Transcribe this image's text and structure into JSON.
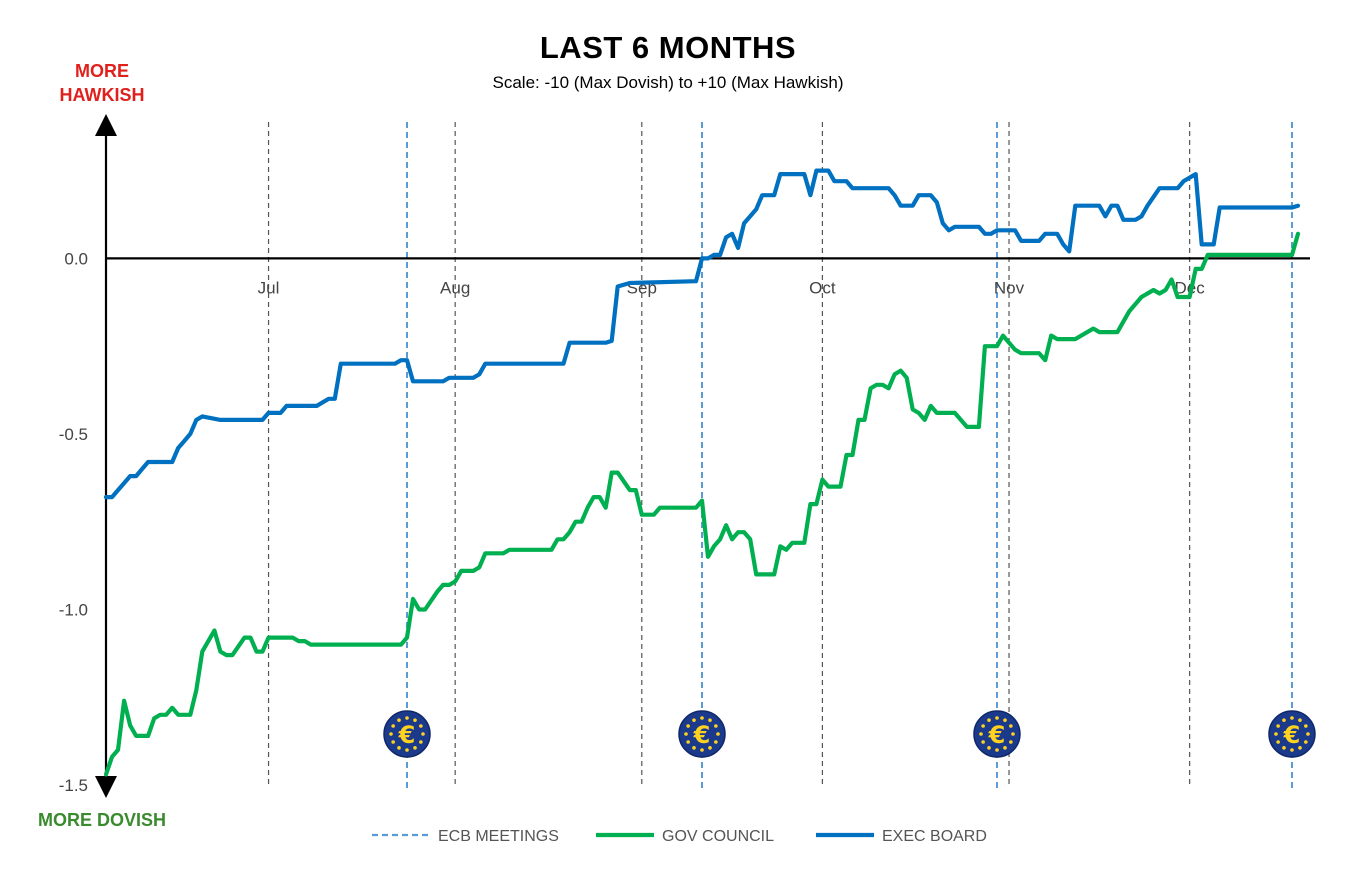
{
  "chart_data": {
    "type": "line",
    "title": "LAST 6 MONTHS",
    "subtitle": "Scale: -10 (Max Dovish)  to +10 (Max Hawkish)",
    "top_label": "MORE HAWKISH",
    "bottom_label": "MORE DOVISH",
    "ylim": [
      -1.5,
      0.38
    ],
    "y_ticks": [
      0.0,
      -0.5,
      -1.0,
      -1.5
    ],
    "y_tick_labels": [
      "0.0",
      "-0.5",
      "-1.0",
      "-1.5"
    ],
    "x_range": [
      "2025-06-04",
      "2025-12-19"
    ],
    "month_ticks": [
      {
        "label": "Jul",
        "date": "2025-07-01"
      },
      {
        "label": "Aug",
        "date": "2025-08-01"
      },
      {
        "label": "Sep",
        "date": "2025-09-01"
      },
      {
        "label": "Oct",
        "date": "2025-10-01"
      },
      {
        "label": "Nov",
        "date": "2025-11-01"
      },
      {
        "label": "Dec",
        "date": "2025-12-01"
      }
    ],
    "ecb_meetings": [
      "2025-07-24",
      "2025-09-11",
      "2025-10-30",
      "2025-12-18"
    ],
    "grid": false,
    "legend": {
      "position": "bottom",
      "entries": [
        {
          "name": "ECB MEETINGS",
          "color": "#5b9bd5",
          "style": "dashed"
        },
        {
          "name": "GOV COUNCIL",
          "color": "#00b050",
          "style": "solid"
        },
        {
          "name": "EXEC BOARD",
          "color": "#0070c0",
          "style": "solid"
        }
      ]
    },
    "series": [
      {
        "name": "EXEC BOARD",
        "color": "#0070c0",
        "points": [
          [
            "2025-06-04",
            -0.68
          ],
          [
            "2025-06-05",
            -0.68
          ],
          [
            "2025-06-06",
            -0.66
          ],
          [
            "2025-06-07",
            -0.64
          ],
          [
            "2025-06-08",
            -0.62
          ],
          [
            "2025-06-09",
            -0.62
          ],
          [
            "2025-06-10",
            -0.6
          ],
          [
            "2025-06-11",
            -0.58
          ],
          [
            "2025-06-14",
            -0.58
          ],
          [
            "2025-06-15",
            -0.58
          ],
          [
            "2025-06-16",
            -0.54
          ],
          [
            "2025-06-17",
            -0.52
          ],
          [
            "2025-06-18",
            -0.5
          ],
          [
            "2025-06-19",
            -0.46
          ],
          [
            "2025-06-20",
            -0.45
          ],
          [
            "2025-06-23",
            -0.46
          ],
          [
            "2025-06-30",
            -0.46
          ],
          [
            "2025-07-01",
            -0.44
          ],
          [
            "2025-07-03",
            -0.44
          ],
          [
            "2025-07-04",
            -0.42
          ],
          [
            "2025-07-08",
            -0.42
          ],
          [
            "2025-07-09",
            -0.42
          ],
          [
            "2025-07-10",
            -0.41
          ],
          [
            "2025-07-11",
            -0.4
          ],
          [
            "2025-07-12",
            -0.4
          ],
          [
            "2025-07-13",
            -0.3
          ],
          [
            "2025-07-18",
            -0.3
          ],
          [
            "2025-07-22",
            -0.3
          ],
          [
            "2025-07-23",
            -0.29
          ],
          [
            "2025-07-24",
            -0.29
          ],
          [
            "2025-07-25",
            -0.35
          ],
          [
            "2025-07-30",
            -0.35
          ],
          [
            "2025-07-31",
            -0.34
          ],
          [
            "2025-08-01",
            -0.34
          ],
          [
            "2025-08-04",
            -0.34
          ],
          [
            "2025-08-05",
            -0.33
          ],
          [
            "2025-08-06",
            -0.3
          ],
          [
            "2025-08-19",
            -0.3
          ],
          [
            "2025-08-20",
            -0.24
          ],
          [
            "2025-08-26",
            -0.24
          ],
          [
            "2025-08-27",
            -0.235
          ],
          [
            "2025-08-28",
            -0.08
          ],
          [
            "2025-08-30",
            -0.07
          ],
          [
            "2025-09-10",
            -0.065
          ],
          [
            "2025-09-11",
            0.0
          ],
          [
            "2025-09-12",
            0.0
          ],
          [
            "2025-09-13",
            0.01
          ],
          [
            "2025-09-14",
            0.01
          ],
          [
            "2025-09-15",
            0.06
          ],
          [
            "2025-09-16",
            0.07
          ],
          [
            "2025-09-17",
            0.03
          ],
          [
            "2025-09-18",
            0.1
          ],
          [
            "2025-09-19",
            0.12
          ],
          [
            "2025-09-20",
            0.14
          ],
          [
            "2025-09-21",
            0.18
          ],
          [
            "2025-09-23",
            0.18
          ],
          [
            "2025-09-24",
            0.24
          ],
          [
            "2025-09-28",
            0.24
          ],
          [
            "2025-09-29",
            0.18
          ],
          [
            "2025-09-30",
            0.25
          ],
          [
            "2025-10-01",
            0.25
          ],
          [
            "2025-10-02",
            0.25
          ],
          [
            "2025-10-03",
            0.22
          ],
          [
            "2025-10-05",
            0.22
          ],
          [
            "2025-10-06",
            0.2
          ],
          [
            "2025-10-12",
            0.2
          ],
          [
            "2025-10-13",
            0.18
          ],
          [
            "2025-10-14",
            0.15
          ],
          [
            "2025-10-16",
            0.15
          ],
          [
            "2025-10-17",
            0.18
          ],
          [
            "2025-10-19",
            0.18
          ],
          [
            "2025-10-20",
            0.16
          ],
          [
            "2025-10-21",
            0.1
          ],
          [
            "2025-10-22",
            0.08
          ],
          [
            "2025-10-23",
            0.09
          ],
          [
            "2025-10-27",
            0.09
          ],
          [
            "2025-10-28",
            0.07
          ],
          [
            "2025-10-29",
            0.07
          ],
          [
            "2025-10-30",
            0.08
          ],
          [
            "2025-11-02",
            0.08
          ],
          [
            "2025-11-03",
            0.05
          ],
          [
            "2025-11-05",
            0.05
          ],
          [
            "2025-11-06",
            0.05
          ],
          [
            "2025-11-07",
            0.07
          ],
          [
            "2025-11-09",
            0.07
          ],
          [
            "2025-11-10",
            0.04
          ],
          [
            "2025-11-11",
            0.02
          ],
          [
            "2025-11-12",
            0.15
          ],
          [
            "2025-11-16",
            0.15
          ],
          [
            "2025-11-17",
            0.12
          ],
          [
            "2025-11-18",
            0.15
          ],
          [
            "2025-11-19",
            0.15
          ],
          [
            "2025-11-20",
            0.11
          ],
          [
            "2025-11-22",
            0.11
          ],
          [
            "2025-11-23",
            0.12
          ],
          [
            "2025-11-24",
            0.15
          ],
          [
            "2025-11-26",
            0.2
          ],
          [
            "2025-11-29",
            0.2
          ],
          [
            "2025-11-30",
            0.22
          ],
          [
            "2025-12-01",
            0.23
          ],
          [
            "2025-12-02",
            0.24
          ],
          [
            "2025-12-03",
            0.04
          ],
          [
            "2025-12-05",
            0.04
          ],
          [
            "2025-12-06",
            0.145
          ],
          [
            "2025-12-18",
            0.145
          ],
          [
            "2025-12-19",
            0.15
          ]
        ]
      },
      {
        "name": "GOV COUNCIL",
        "color": "#00b050",
        "points": [
          [
            "2025-06-04",
            -1.47
          ],
          [
            "2025-06-05",
            -1.42
          ],
          [
            "2025-06-06",
            -1.4
          ],
          [
            "2025-06-07",
            -1.26
          ],
          [
            "2025-06-08",
            -1.33
          ],
          [
            "2025-06-09",
            -1.36
          ],
          [
            "2025-06-11",
            -1.36
          ],
          [
            "2025-06-12",
            -1.31
          ],
          [
            "2025-06-13",
            -1.3
          ],
          [
            "2025-06-14",
            -1.3
          ],
          [
            "2025-06-15",
            -1.28
          ],
          [
            "2025-06-16",
            -1.3
          ],
          [
            "2025-06-18",
            -1.3
          ],
          [
            "2025-06-19",
            -1.23
          ],
          [
            "2025-06-20",
            -1.12
          ],
          [
            "2025-06-22",
            -1.06
          ],
          [
            "2025-06-23",
            -1.12
          ],
          [
            "2025-06-24",
            -1.13
          ],
          [
            "2025-06-25",
            -1.13
          ],
          [
            "2025-06-27",
            -1.08
          ],
          [
            "2025-06-28",
            -1.08
          ],
          [
            "2025-06-29",
            -1.12
          ],
          [
            "2025-06-30",
            -1.12
          ],
          [
            "2025-07-01",
            -1.08
          ],
          [
            "2025-07-05",
            -1.08
          ],
          [
            "2025-07-06",
            -1.09
          ],
          [
            "2025-07-07",
            -1.09
          ],
          [
            "2025-07-08",
            -1.1
          ],
          [
            "2025-07-23",
            -1.1
          ],
          [
            "2025-07-24",
            -1.08
          ],
          [
            "2025-07-25",
            -0.97
          ],
          [
            "2025-07-26",
            -1.0
          ],
          [
            "2025-07-27",
            -1.0
          ],
          [
            "2025-07-29",
            -0.95
          ],
          [
            "2025-07-30",
            -0.93
          ],
          [
            "2025-07-31",
            -0.93
          ],
          [
            "2025-08-01",
            -0.92
          ],
          [
            "2025-08-02",
            -0.89
          ],
          [
            "2025-08-04",
            -0.89
          ],
          [
            "2025-08-05",
            -0.88
          ],
          [
            "2025-08-06",
            -0.84
          ],
          [
            "2025-08-09",
            -0.84
          ],
          [
            "2025-08-10",
            -0.83
          ],
          [
            "2025-08-17",
            -0.83
          ],
          [
            "2025-08-18",
            -0.8
          ],
          [
            "2025-08-19",
            -0.8
          ],
          [
            "2025-08-20",
            -0.78
          ],
          [
            "2025-08-21",
            -0.75
          ],
          [
            "2025-08-22",
            -0.75
          ],
          [
            "2025-08-23",
            -0.71
          ],
          [
            "2025-08-24",
            -0.68
          ],
          [
            "2025-08-25",
            -0.68
          ],
          [
            "2025-08-26",
            -0.71
          ],
          [
            "2025-08-27",
            -0.61
          ],
          [
            "2025-08-28",
            -0.61
          ],
          [
            "2025-08-30",
            -0.66
          ],
          [
            "2025-08-31",
            -0.66
          ],
          [
            "2025-09-01",
            -0.73
          ],
          [
            "2025-09-02",
            -0.73
          ],
          [
            "2025-09-03",
            -0.73
          ],
          [
            "2025-09-04",
            -0.71
          ],
          [
            "2025-09-09",
            -0.71
          ],
          [
            "2025-09-10",
            -0.71
          ],
          [
            "2025-09-11",
            -0.69
          ],
          [
            "2025-09-12",
            -0.85
          ],
          [
            "2025-09-13",
            -0.82
          ],
          [
            "2025-09-14",
            -0.8
          ],
          [
            "2025-09-15",
            -0.76
          ],
          [
            "2025-09-16",
            -0.8
          ],
          [
            "2025-09-17",
            -0.78
          ],
          [
            "2025-09-18",
            -0.78
          ],
          [
            "2025-09-19",
            -0.8
          ],
          [
            "2025-09-20",
            -0.9
          ],
          [
            "2025-09-23",
            -0.9
          ],
          [
            "2025-09-24",
            -0.82
          ],
          [
            "2025-09-25",
            -0.83
          ],
          [
            "2025-09-26",
            -0.81
          ],
          [
            "2025-09-28",
            -0.81
          ],
          [
            "2025-09-29",
            -0.7
          ],
          [
            "2025-09-30",
            -0.7
          ],
          [
            "2025-10-01",
            -0.63
          ],
          [
            "2025-10-02",
            -0.65
          ],
          [
            "2025-10-04",
            -0.65
          ],
          [
            "2025-10-05",
            -0.56
          ],
          [
            "2025-10-06",
            -0.56
          ],
          [
            "2025-10-07",
            -0.46
          ],
          [
            "2025-10-08",
            -0.46
          ],
          [
            "2025-10-09",
            -0.37
          ],
          [
            "2025-10-10",
            -0.36
          ],
          [
            "2025-10-11",
            -0.36
          ],
          [
            "2025-10-12",
            -0.37
          ],
          [
            "2025-10-13",
            -0.33
          ],
          [
            "2025-10-14",
            -0.32
          ],
          [
            "2025-10-15",
            -0.34
          ],
          [
            "2025-10-16",
            -0.43
          ],
          [
            "2025-10-17",
            -0.44
          ],
          [
            "2025-10-18",
            -0.46
          ],
          [
            "2025-10-19",
            -0.42
          ],
          [
            "2025-10-20",
            -0.44
          ],
          [
            "2025-10-23",
            -0.44
          ],
          [
            "2025-10-24",
            -0.46
          ],
          [
            "2025-10-25",
            -0.48
          ],
          [
            "2025-10-26",
            -0.48
          ],
          [
            "2025-10-27",
            -0.48
          ],
          [
            "2025-10-28",
            -0.25
          ],
          [
            "2025-10-29",
            -0.25
          ],
          [
            "2025-10-30",
            -0.25
          ],
          [
            "2025-10-31",
            -0.22
          ],
          [
            "2025-11-01",
            -0.24
          ],
          [
            "2025-11-02",
            -0.26
          ],
          [
            "2025-11-03",
            -0.27
          ],
          [
            "2025-11-06",
            -0.27
          ],
          [
            "2025-11-07",
            -0.29
          ],
          [
            "2025-11-08",
            -0.22
          ],
          [
            "2025-11-09",
            -0.23
          ],
          [
            "2025-11-12",
            -0.23
          ],
          [
            "2025-11-13",
            -0.22
          ],
          [
            "2025-11-14",
            -0.21
          ],
          [
            "2025-11-15",
            -0.2
          ],
          [
            "2025-11-16",
            -0.21
          ],
          [
            "2025-11-19",
            -0.21
          ],
          [
            "2025-11-20",
            -0.18
          ],
          [
            "2025-11-21",
            -0.15
          ],
          [
            "2025-11-22",
            -0.13
          ],
          [
            "2025-11-23",
            -0.11
          ],
          [
            "2025-11-24",
            -0.1
          ],
          [
            "2025-11-25",
            -0.09
          ],
          [
            "2025-11-26",
            -0.1
          ],
          [
            "2025-11-27",
            -0.09
          ],
          [
            "2025-11-28",
            -0.06
          ],
          [
            "2025-11-29",
            -0.11
          ],
          [
            "2025-12-01",
            -0.11
          ],
          [
            "2025-12-02",
            -0.03
          ],
          [
            "2025-12-03",
            -0.03
          ],
          [
            "2025-12-04",
            0.01
          ],
          [
            "2025-12-05",
            0.01
          ],
          [
            "2025-12-18",
            0.01
          ],
          [
            "2025-12-19",
            0.07
          ]
        ]
      }
    ]
  }
}
